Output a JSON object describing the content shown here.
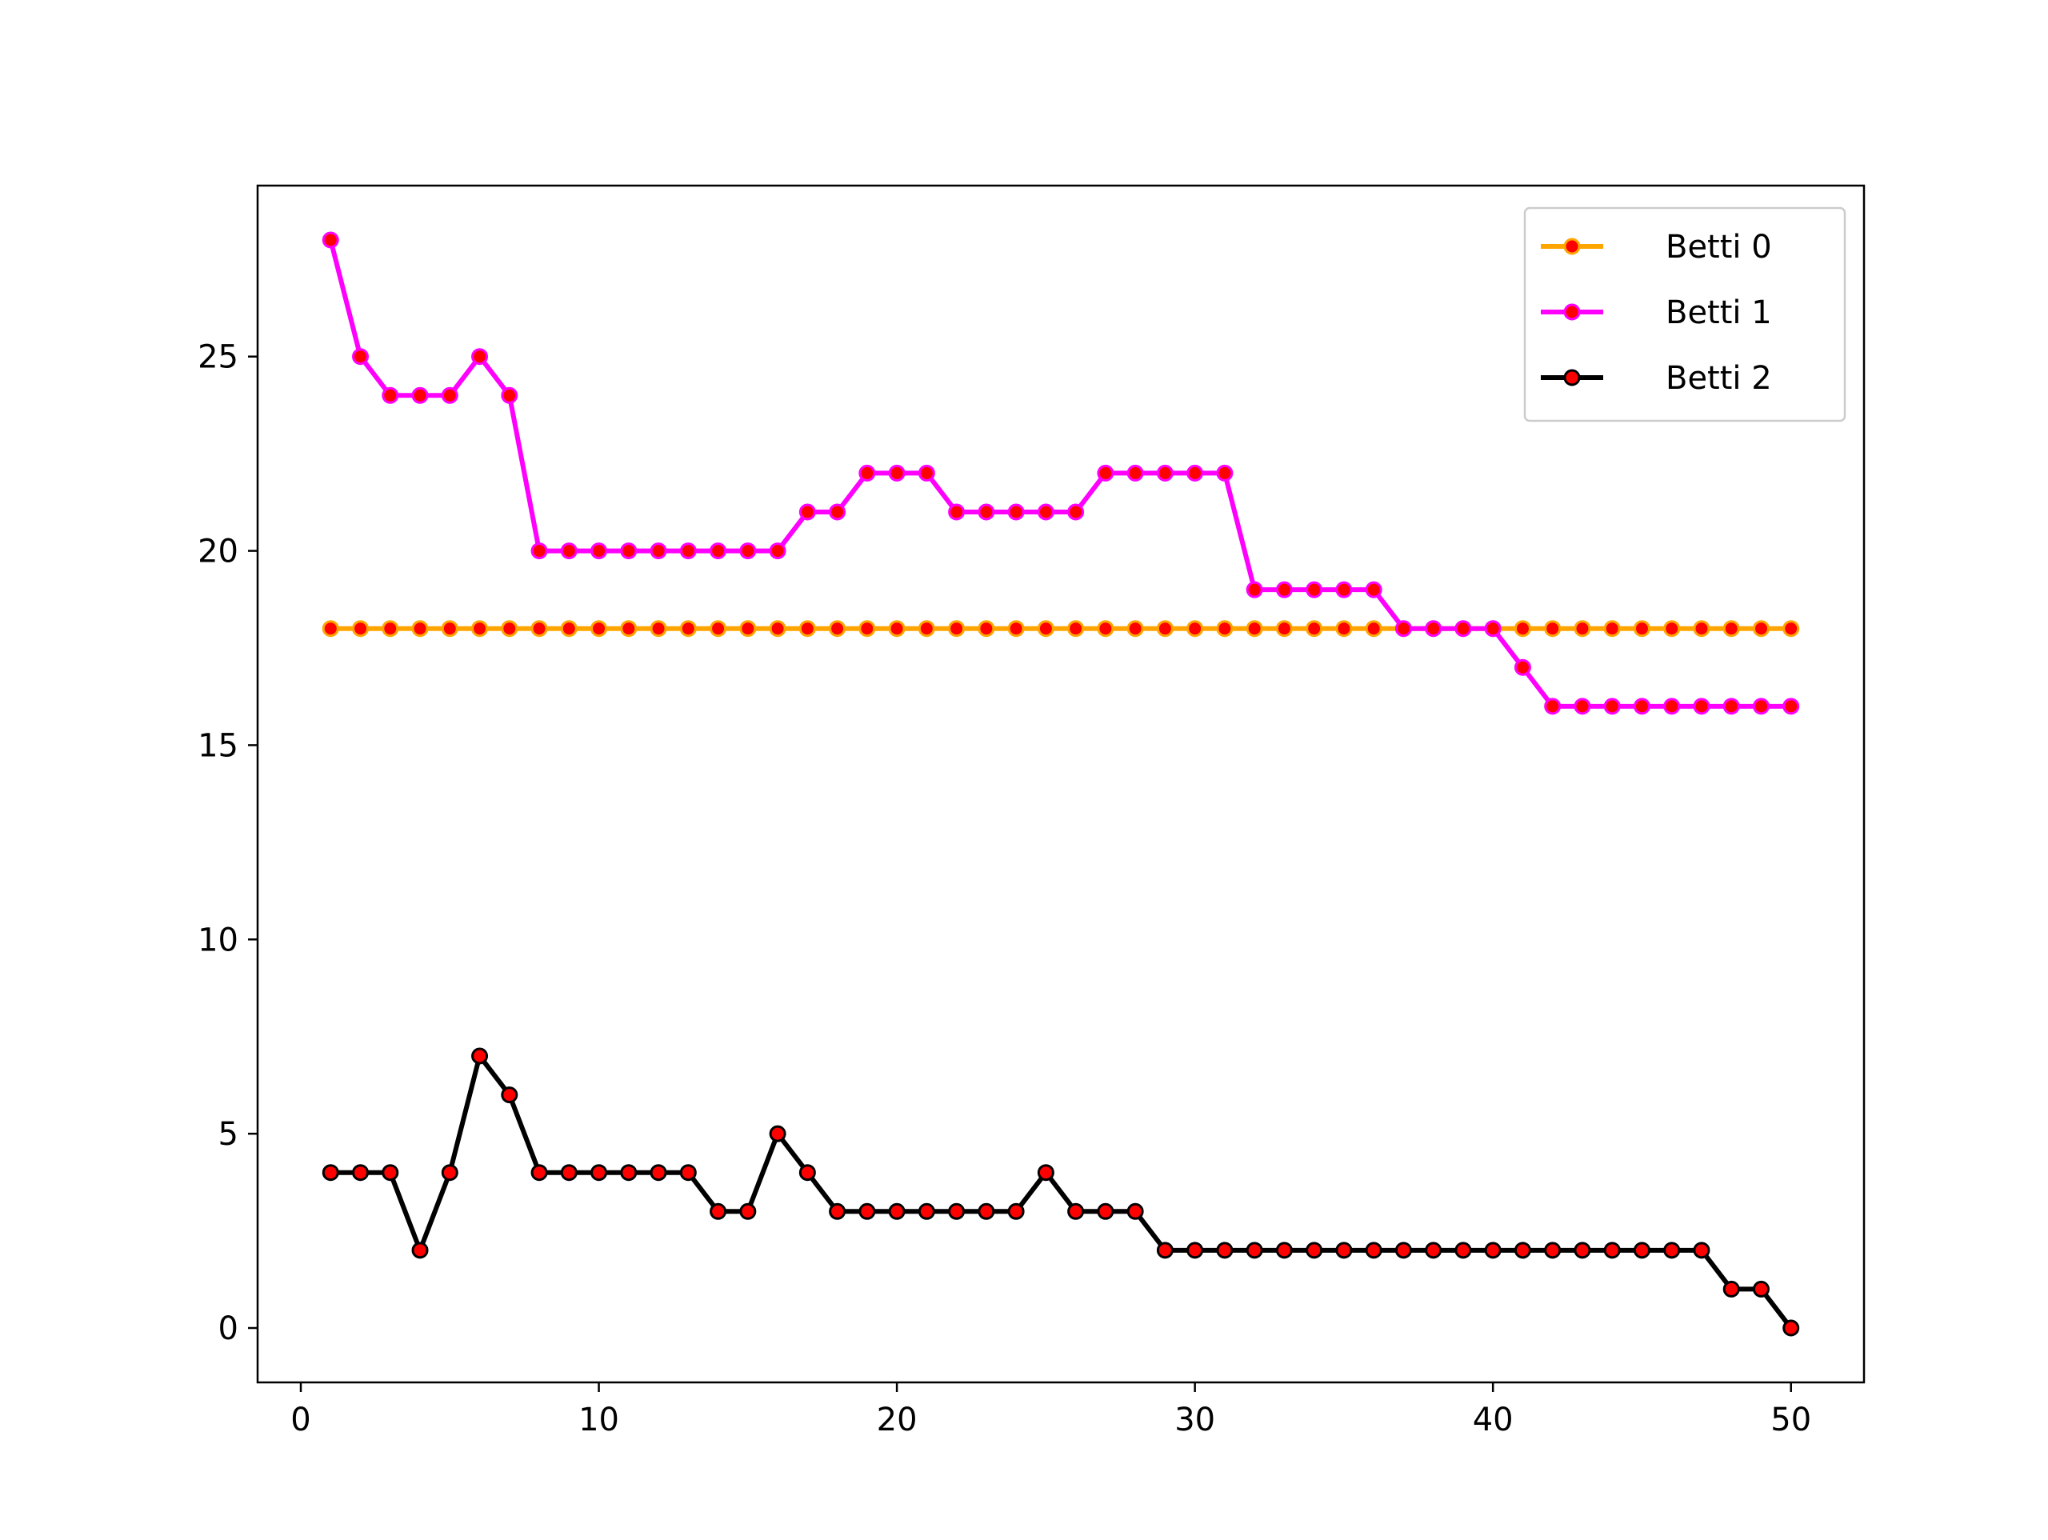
{
  "chart_data": {
    "type": "line",
    "title": "",
    "xlabel": "",
    "ylabel": "",
    "xlim": [
      -1.45,
      52.45
    ],
    "ylim": [
      -1.4,
      29.4
    ],
    "xticks": [
      0,
      10,
      20,
      30,
      40,
      50
    ],
    "yticks": [
      0,
      5,
      10,
      15,
      20,
      25
    ],
    "grid": false,
    "legend": {
      "position": "top-right"
    },
    "x": [
      1,
      2,
      3,
      4,
      5,
      6,
      7,
      8,
      9,
      10,
      11,
      12,
      13,
      14,
      15,
      16,
      17,
      18,
      19,
      20,
      21,
      22,
      23,
      24,
      25,
      26,
      27,
      28,
      29,
      30,
      31,
      32,
      33,
      34,
      35,
      36,
      37,
      38,
      39,
      40,
      41,
      42,
      43,
      44,
      45,
      46,
      47,
      48,
      49,
      50
    ],
    "series": [
      {
        "name": "Betti 0",
        "color": "#ffa500",
        "marker_color": "#ff0000",
        "values": [
          18,
          18,
          18,
          18,
          18,
          18,
          18,
          18,
          18,
          18,
          18,
          18,
          18,
          18,
          18,
          18,
          18,
          18,
          18,
          18,
          18,
          18,
          18,
          18,
          18,
          18,
          18,
          18,
          18,
          18,
          18,
          18,
          18,
          18,
          18,
          18,
          18,
          18,
          18,
          18,
          18,
          18,
          18,
          18,
          18,
          18,
          18,
          18,
          18,
          18
        ]
      },
      {
        "name": "Betti 1",
        "color": "#ff00ff",
        "marker_color": "#ff0000",
        "values": [
          28,
          25,
          24,
          24,
          24,
          25,
          24,
          20,
          20,
          20,
          20,
          20,
          20,
          20,
          20,
          20,
          21,
          21,
          22,
          22,
          22,
          21,
          21,
          21,
          21,
          21,
          22,
          22,
          22,
          22,
          22,
          19,
          19,
          19,
          19,
          19,
          18,
          18,
          18,
          18,
          17,
          16,
          16,
          16,
          16,
          16,
          16,
          16,
          16,
          16
        ]
      },
      {
        "name": "Betti 2",
        "color": "#000000",
        "marker_color": "#ff0000",
        "values": [
          4,
          4,
          4,
          2,
          4,
          7,
          6,
          4,
          4,
          4,
          4,
          4,
          4,
          3,
          3,
          5,
          4,
          3,
          3,
          3,
          3,
          3,
          3,
          3,
          4,
          3,
          3,
          3,
          2,
          2,
          2,
          2,
          2,
          2,
          2,
          2,
          2,
          2,
          2,
          2,
          2,
          2,
          2,
          2,
          2,
          2,
          2,
          1,
          1,
          0
        ]
      }
    ]
  }
}
